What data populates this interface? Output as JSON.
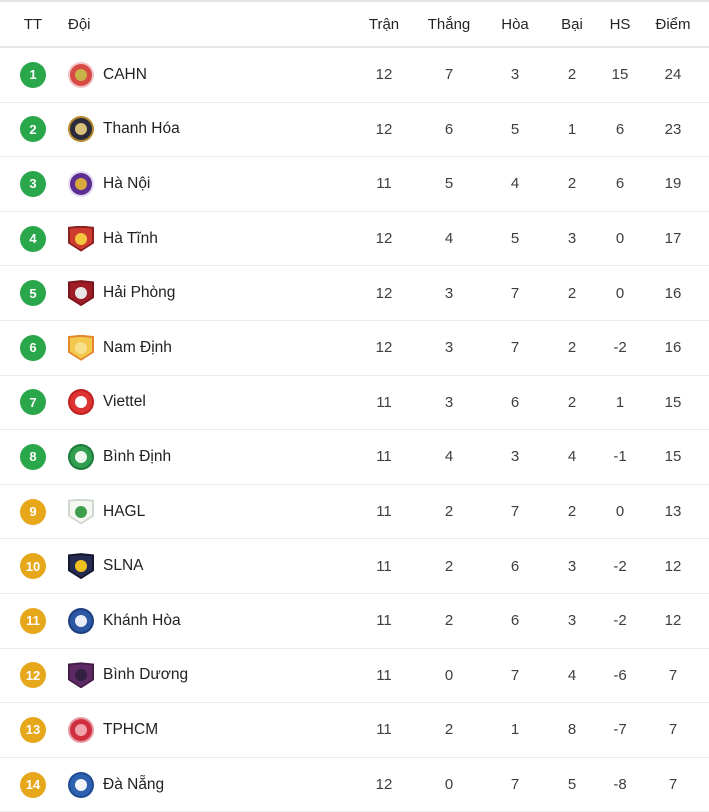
{
  "table": {
    "columns": {
      "position": "TT",
      "team": "Đội",
      "played": "Trận",
      "wins": "Thắng",
      "draws": "Hòa",
      "losses": "Bại",
      "goal_diff": "HS",
      "points": "Điểm"
    },
    "colors": {
      "badge_green": "#2aa64b",
      "badge_gold": "#e7a71b",
      "row_divider": "#ebebeb",
      "header_text": "#212529",
      "cell_text": "#3c4043"
    },
    "rows": [
      {
        "position": 1,
        "team": "CAHN",
        "played": 12,
        "wins": 7,
        "draws": 3,
        "losses": 2,
        "goal_diff": 15,
        "points": 24,
        "badge": "green",
        "logo": {
          "shape": "circle",
          "ring": "#f0c3c6",
          "body": "#d84b44",
          "core": "#c9b24a"
        }
      },
      {
        "position": 2,
        "team": "Thanh Hóa",
        "played": 12,
        "wins": 6,
        "draws": 5,
        "losses": 1,
        "goal_diff": 6,
        "points": 23,
        "badge": "green",
        "logo": {
          "shape": "circle",
          "ring": "#b58b2a",
          "body": "#2b2b3d",
          "core": "#d9c07a"
        }
      },
      {
        "position": 3,
        "team": "Hà Nội",
        "played": 11,
        "wins": 5,
        "draws": 4,
        "losses": 2,
        "goal_diff": 6,
        "points": 19,
        "badge": "green",
        "logo": {
          "shape": "circle",
          "ring": "#e4d9f0",
          "body": "#5c2e91",
          "core": "#d9a73b"
        }
      },
      {
        "position": 4,
        "team": "Hà Tĩnh",
        "played": 12,
        "wins": 4,
        "draws": 5,
        "losses": 3,
        "goal_diff": 0,
        "points": 17,
        "badge": "green",
        "logo": {
          "shape": "shield",
          "ring": "#8c1f1f",
          "body": "#cf3b2f",
          "core": "#f4c63f"
        }
      },
      {
        "position": 5,
        "team": "Hải Phòng",
        "played": 12,
        "wins": 3,
        "draws": 7,
        "losses": 2,
        "goal_diff": 0,
        "points": 16,
        "badge": "green",
        "logo": {
          "shape": "shield",
          "ring": "#7a151c",
          "body": "#9e1c24",
          "core": "#e8e6e6"
        }
      },
      {
        "position": 6,
        "team": "Nam Định",
        "played": 12,
        "wins": 3,
        "draws": 7,
        "losses": 2,
        "goal_diff": -2,
        "points": 16,
        "badge": "green",
        "logo": {
          "shape": "shield",
          "ring": "#e2862f",
          "body": "#f3c84c",
          "core": "#f7e08a"
        }
      },
      {
        "position": 7,
        "team": "Viettel",
        "played": 11,
        "wins": 3,
        "draws": 6,
        "losses": 2,
        "goal_diff": 1,
        "points": 15,
        "badge": "green",
        "logo": {
          "shape": "circle",
          "ring": "#c02020",
          "body": "#dd3333",
          "core": "#ffffff"
        }
      },
      {
        "position": 8,
        "team": "Bình Định",
        "played": 11,
        "wins": 4,
        "draws": 3,
        "losses": 4,
        "goal_diff": -1,
        "points": 15,
        "badge": "green",
        "logo": {
          "shape": "circle",
          "ring": "#1d7a38",
          "body": "#2f9e4f",
          "core": "#eef7ee"
        }
      },
      {
        "position": 9,
        "team": "HAGL",
        "played": 11,
        "wins": 2,
        "draws": 7,
        "losses": 2,
        "goal_diff": 0,
        "points": 13,
        "badge": "gold",
        "logo": {
          "shape": "shield",
          "ring": "#cfd8cf",
          "body": "#f7f7f2",
          "core": "#3f9e4d"
        }
      },
      {
        "position": 10,
        "team": "SLNA",
        "played": 11,
        "wins": 2,
        "draws": 6,
        "losses": 3,
        "goal_diff": -2,
        "points": 12,
        "badge": "gold",
        "logo": {
          "shape": "shield",
          "ring": "#15172e",
          "body": "#252c52",
          "core": "#f2c01f"
        }
      },
      {
        "position": 11,
        "team": "Khánh Hòa",
        "played": 11,
        "wins": 2,
        "draws": 6,
        "losses": 3,
        "goal_diff": -2,
        "points": 12,
        "badge": "gold",
        "logo": {
          "shape": "circle",
          "ring": "#1d3f7e",
          "body": "#2b57a5",
          "core": "#e9eef8"
        }
      },
      {
        "position": 12,
        "team": "Bình Dương",
        "played": 11,
        "wins": 0,
        "draws": 7,
        "losses": 4,
        "goal_diff": -6,
        "points": 7,
        "badge": "gold",
        "logo": {
          "shape": "shield",
          "ring": "#441c49",
          "body": "#5e2a63",
          "core": "#31203f"
        }
      },
      {
        "position": 13,
        "team": "TPHCM",
        "played": 11,
        "wins": 2,
        "draws": 1,
        "losses": 8,
        "goal_diff": -7,
        "points": 7,
        "badge": "gold",
        "logo": {
          "shape": "circle",
          "ring": "#e89aa4",
          "body": "#cf2f3f",
          "core": "#f0a3ab"
        }
      },
      {
        "position": 14,
        "team": "Đà Nẵng",
        "played": 12,
        "wins": 0,
        "draws": 7,
        "losses": 5,
        "goal_diff": -8,
        "points": 7,
        "badge": "gold",
        "logo": {
          "shape": "circle",
          "ring": "#1f4c93",
          "body": "#2e62b1",
          "core": "#f2f5fa"
        }
      }
    ]
  }
}
